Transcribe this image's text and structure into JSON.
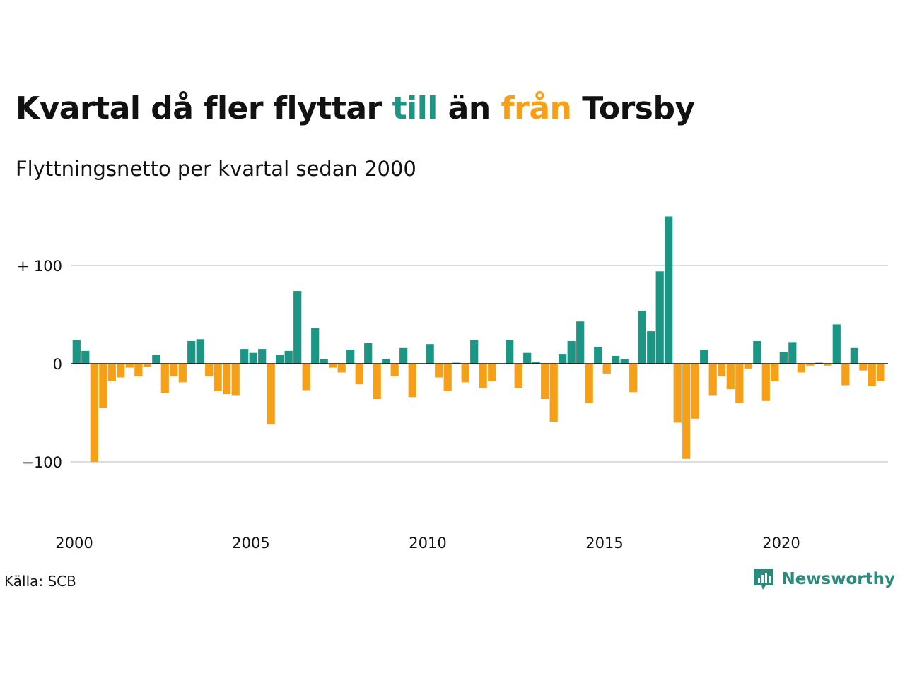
{
  "title": {
    "pre": "Kvartal då fler flyttar ",
    "till": "till",
    "mid": " än ",
    "fran": "från",
    "post": " Torsby"
  },
  "subtitle": "Flyttningsnetto per kvartal sedan 2000",
  "source": "Källa: SCB",
  "brand": "Newsworthy",
  "colors": {
    "positive": "#1b9684",
    "negative": "#f6a01a",
    "grid": "#dddddd",
    "brand": "#2c8a7d"
  },
  "chart_data": {
    "type": "bar",
    "xlabel": "",
    "ylabel": "",
    "ylim": [
      -170,
      160
    ],
    "yticks": [
      {
        "value": 100,
        "label": "+ 100"
      },
      {
        "value": 0,
        "label": "0"
      },
      {
        "value": -100,
        "label": "−100"
      }
    ],
    "xticks": [
      {
        "year": 2000,
        "label": "2000"
      },
      {
        "year": 2005,
        "label": "2005"
      },
      {
        "year": 2010,
        "label": "2010"
      },
      {
        "year": 2015,
        "label": "2015"
      },
      {
        "year": 2020,
        "label": "2020"
      }
    ],
    "start": "2000 Q1",
    "values": [
      24,
      13,
      -100,
      -45,
      -18,
      -14,
      -4,
      -13,
      -3,
      9,
      -30,
      -13,
      -19,
      23,
      25,
      -13,
      -28,
      -31,
      -32,
      15,
      11,
      15,
      -62,
      9,
      13,
      74,
      -27,
      36,
      5,
      -4,
      -9,
      14,
      -21,
      21,
      -36,
      5,
      -13,
      16,
      -34,
      0,
      20,
      -14,
      -28,
      1,
      -19,
      24,
      -25,
      -18,
      0,
      24,
      -25,
      11,
      2,
      -36,
      -59,
      10,
      23,
      43,
      -40,
      17,
      -10,
      8,
      5,
      -29,
      54,
      33,
      94,
      150,
      -60,
      -97,
      -56,
      14,
      -32,
      -13,
      -26,
      -40,
      -5,
      23,
      -38,
      -18,
      12,
      22,
      -9,
      -2,
      1,
      -2,
      40,
      -22,
      16,
      -7,
      -23,
      -18
    ]
  }
}
